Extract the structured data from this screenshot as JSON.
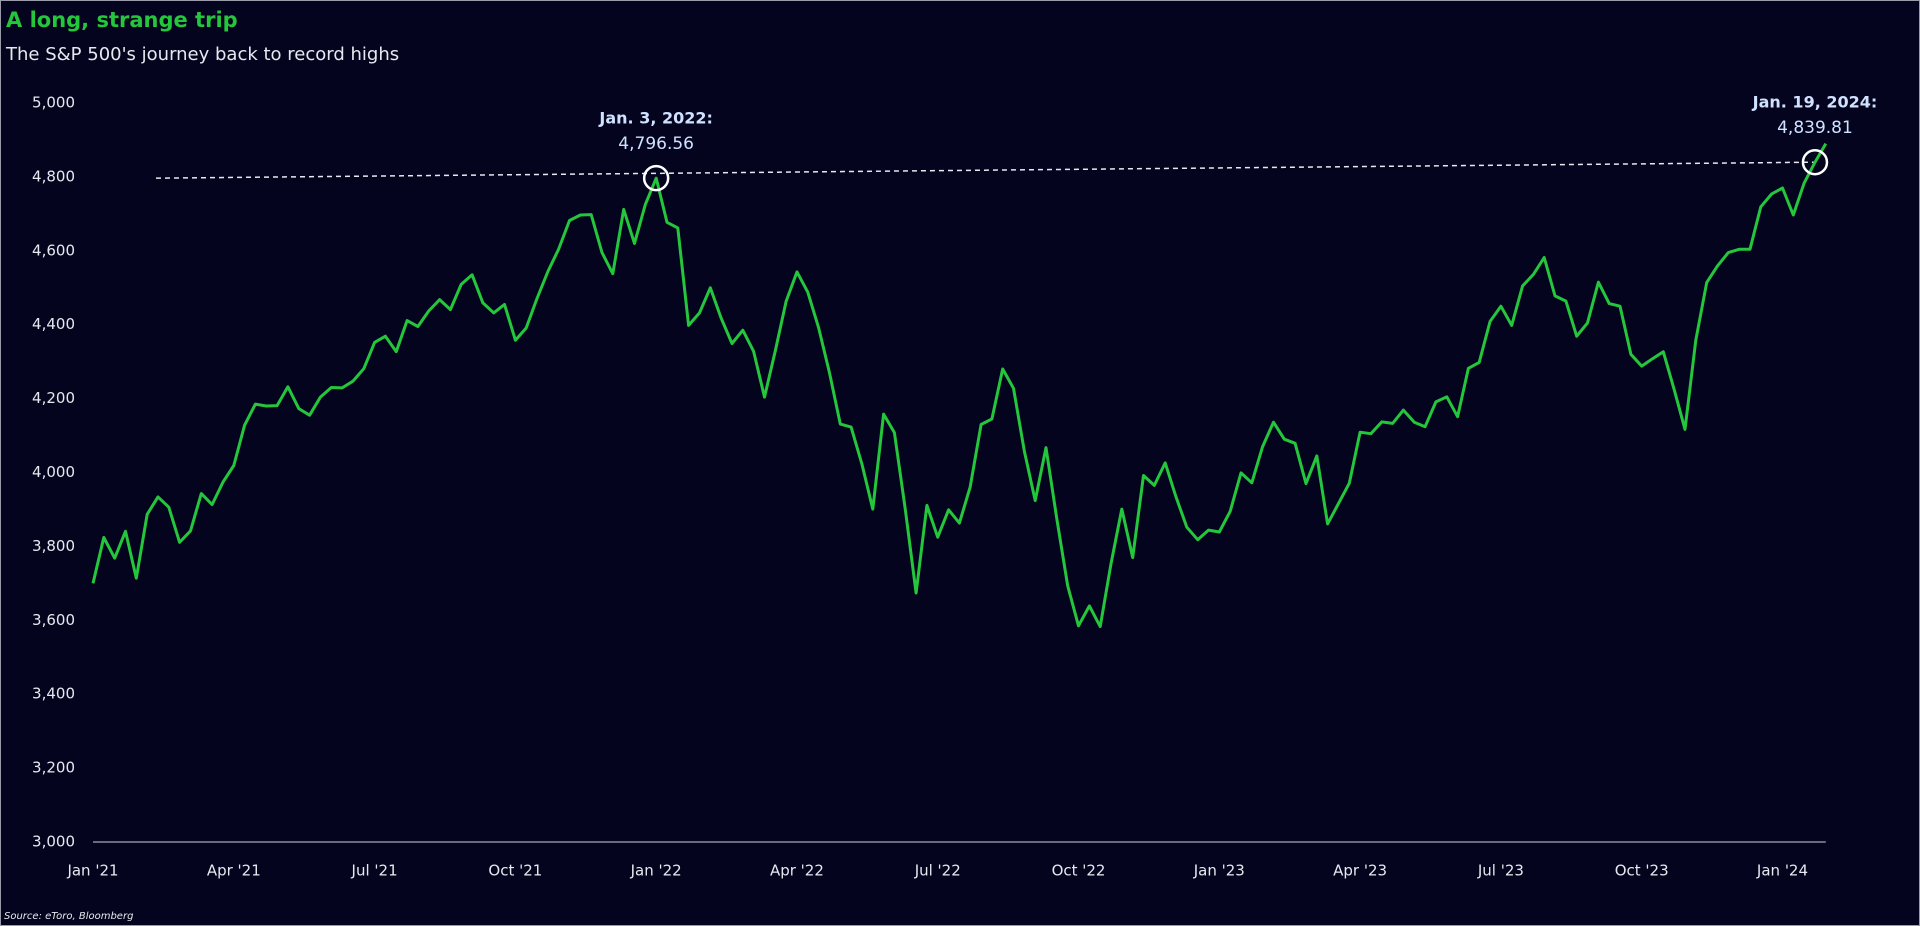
{
  "chart_data": {
    "type": "line",
    "title": "A long, strange trip",
    "subtitle": "The S&P 500's journey back to record highs",
    "source": "Source: eToro, Bloomberg",
    "categories": [
      "Jan '21",
      null,
      null,
      null,
      null,
      null,
      null,
      null,
      null,
      null,
      null,
      null,
      null,
      "Apr '21",
      null,
      null,
      null,
      null,
      null,
      null,
      null,
      null,
      null,
      null,
      null,
      null,
      "Jul '21",
      null,
      null,
      null,
      null,
      null,
      null,
      null,
      null,
      null,
      null,
      null,
      null,
      "Oct '21",
      null,
      null,
      null,
      null,
      null,
      null,
      null,
      null,
      null,
      null,
      null,
      null,
      "Jan '22",
      null,
      null,
      null,
      null,
      null,
      null,
      null,
      null,
      null,
      null,
      null,
      null,
      "Apr '22",
      null,
      null,
      null,
      null,
      null,
      null,
      null,
      null,
      null,
      null,
      null,
      null,
      "Jul '22",
      null,
      null,
      null,
      null,
      null,
      null,
      null,
      null,
      null,
      null,
      null,
      null,
      "Oct '22",
      null,
      null,
      null,
      null,
      null,
      null,
      null,
      null,
      null,
      null,
      null,
      null,
      "Jan '23",
      null,
      null,
      null,
      null,
      null,
      null,
      null,
      null,
      null,
      null,
      null,
      null,
      "Apr '23",
      null,
      null,
      null,
      null,
      null,
      null,
      null,
      null,
      null,
      null,
      null,
      null,
      "Jul '23",
      null,
      null,
      null,
      null,
      null,
      null,
      null,
      null,
      null,
      null,
      null,
      null,
      "Oct '23",
      null,
      null,
      null,
      null,
      null,
      null,
      null,
      null,
      null,
      null,
      null,
      null,
      "Jan '24",
      null,
      null,
      null,
      null
    ],
    "series": [
      {
        "color": "#24c63c",
        "values": [
          3700,
          3824,
          3768,
          3841,
          3714,
          3887,
          3934,
          3906,
          3811,
          3842,
          3943,
          3913,
          3974,
          4019,
          4128,
          4185,
          4180,
          4181,
          4232,
          4173,
          4155,
          4204,
          4230,
          4229,
          4247,
          4281,
          4352,
          4369,
          4327,
          4411,
          4395,
          4437,
          4468,
          4441,
          4509,
          4535,
          4459,
          4432,
          4455,
          4358,
          4391,
          4471,
          4544,
          4605,
          4682,
          4697,
          4698,
          4595,
          4538,
          4712,
          4620,
          4725,
          4796.56,
          4677,
          4662,
          4398,
          4432,
          4500,
          4418,
          4349,
          4385,
          4328,
          4204,
          4329,
          4463,
          4543,
          4488,
          4392,
          4271,
          4131,
          4123,
          4023,
          3901,
          4158,
          4108,
          3900,
          3674,
          3911,
          3825,
          3899,
          3863,
          3961,
          4130,
          4145,
          4280,
          4228,
          4057,
          3924,
          4067,
          3873,
          3693,
          3585,
          3639,
          3583,
          3753,
          3901,
          3770,
          3992,
          3965,
          4026,
          3934,
          3852,
          3818,
          3844,
          3839,
          3895,
          3999,
          3972,
          4070,
          4136,
          4090,
          4079,
          3970,
          4045,
          3861,
          3916,
          3971,
          4109,
          4105,
          4137,
          4133,
          4169,
          4136,
          4124,
          4191,
          4205,
          4151,
          4282,
          4298,
          4409,
          4450,
          4398,
          4505,
          4536,
          4582,
          4478,
          4464,
          4369,
          4405,
          4515,
          4457,
          4450,
          4320,
          4288,
          4308,
          4327,
          4224,
          4117,
          4358,
          4514,
          4559,
          4595,
          4604,
          4604,
          4719,
          4754,
          4770,
          4697,
          4783,
          4839.81,
          4890
        ]
      }
    ],
    "annotations": [
      {
        "text": "Jan. 3, 2022:",
        "value": 4796.56,
        "value_label": "4,796.56"
      },
      {
        "text": "Jan. 19, 2024:",
        "value": 4839.81,
        "value_label": "4,839.81"
      }
    ],
    "ylim": [
      3000,
      5000
    ],
    "yticks": [
      {
        "value": 3000,
        "label": "3,000"
      },
      {
        "value": 3200,
        "label": "3,200"
      },
      {
        "value": 3400,
        "label": "3,400"
      },
      {
        "value": 3600,
        "label": "3,600"
      },
      {
        "value": 3800,
        "label": "3,800"
      },
      {
        "value": 4000,
        "label": "4,000"
      },
      {
        "value": 4200,
        "label": "4,200"
      },
      {
        "value": 4400,
        "label": "4,400"
      },
      {
        "value": 4600,
        "label": "4,600"
      },
      {
        "value": 4800,
        "label": "4,800"
      },
      {
        "value": 5000,
        "label": "5,000"
      }
    ],
    "grid": false
  }
}
